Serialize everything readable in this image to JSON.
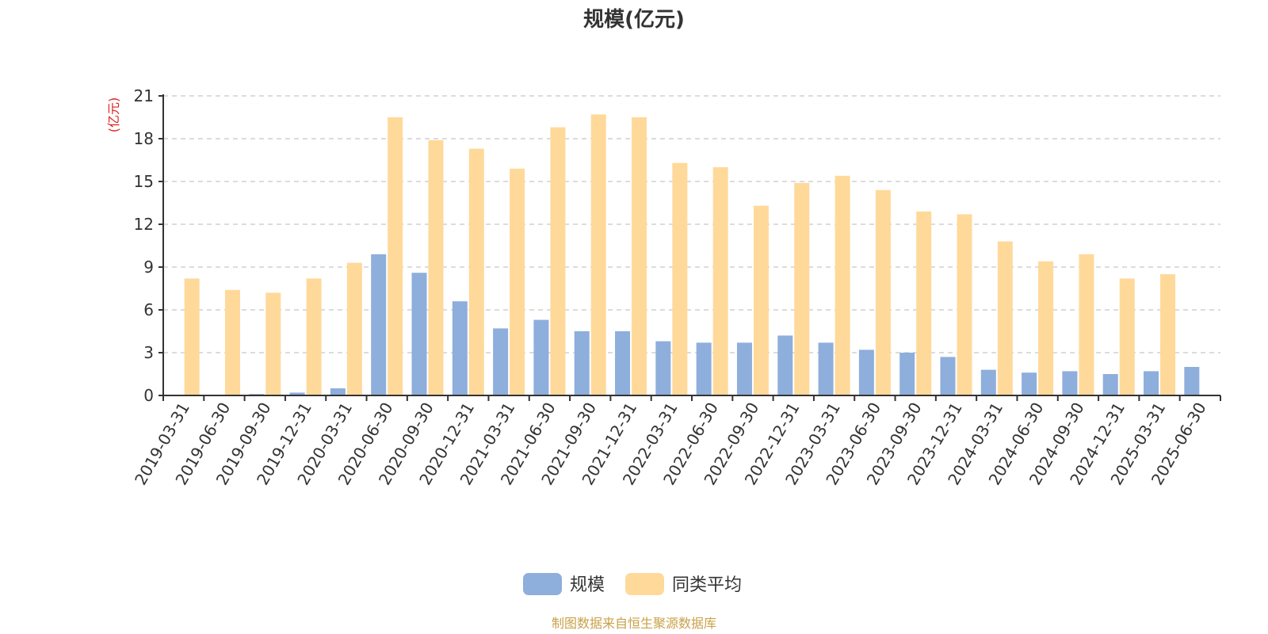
{
  "chart_data": {
    "type": "bar",
    "title": "规模(亿元)",
    "ylabel": "(亿元)",
    "ylim": [
      0,
      21
    ],
    "yticks": [
      0,
      3,
      6,
      9,
      12,
      15,
      18,
      21
    ],
    "categories": [
      "2019-03-31",
      "2019-06-30",
      "2019-09-30",
      "2019-12-31",
      "2020-03-31",
      "2020-06-30",
      "2020-09-30",
      "2020-12-31",
      "2021-03-31",
      "2021-06-30",
      "2021-09-30",
      "2021-12-31",
      "2022-03-31",
      "2022-06-30",
      "2022-09-30",
      "2022-12-31",
      "2023-03-31",
      "2023-06-30",
      "2023-09-30",
      "2023-12-31",
      "2024-03-31",
      "2024-06-30",
      "2024-09-30",
      "2024-12-31",
      "2025-03-31",
      "2025-06-30"
    ],
    "series": [
      {
        "name": "规模",
        "color": "#8eaedc",
        "values": [
          0,
          0.05,
          0.1,
          0.2,
          0.5,
          9.9,
          8.6,
          6.6,
          4.7,
          5.3,
          4.5,
          4.5,
          3.8,
          3.7,
          3.7,
          4.2,
          3.7,
          3.2,
          3.0,
          2.7,
          1.8,
          1.6,
          1.7,
          1.5,
          1.7,
          2.0
        ]
      },
      {
        "name": "同类平均",
        "color": "#ffd99a",
        "values": [
          8.2,
          7.4,
          7.2,
          8.2,
          9.3,
          19.5,
          17.9,
          17.3,
          15.9,
          18.8,
          19.7,
          19.5,
          16.3,
          16.0,
          13.3,
          14.9,
          15.4,
          14.4,
          12.9,
          12.7,
          10.8,
          9.4,
          9.9,
          8.2,
          8.5,
          null
        ]
      }
    ],
    "grid": true,
    "legend": "bottom-center",
    "source": "制图数据来自恒生聚源数据库"
  }
}
